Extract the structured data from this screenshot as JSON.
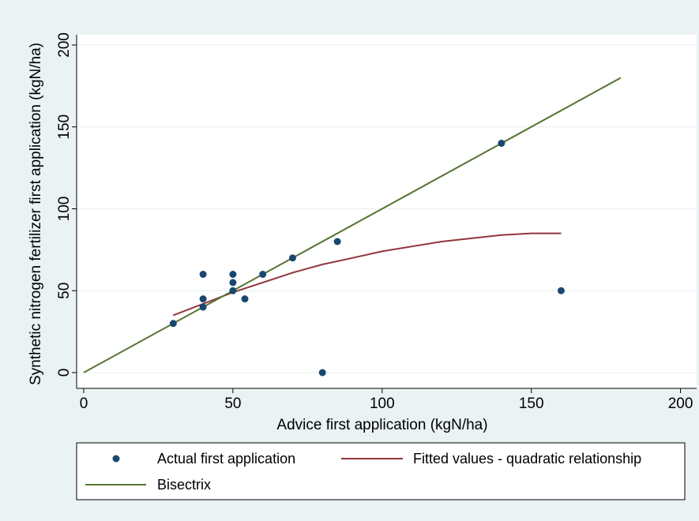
{
  "chart_data": {
    "type": "scatter",
    "title": "",
    "xlabel": "Advice first application (kgN/ha)",
    "ylabel": "Synthetic nitrogen fertilizer first application (kgN/ha)",
    "xlim": [
      0,
      200
    ],
    "ylim": [
      0,
      200
    ],
    "xticks": [
      0,
      50,
      100,
      150,
      200
    ],
    "yticks": [
      0,
      50,
      100,
      150,
      200
    ],
    "grid": "horizontal",
    "legend_position": "bottom",
    "series": [
      {
        "name": "Actual first application",
        "kind": "scatter",
        "color": "#1a476f",
        "points": [
          [
            30,
            30
          ],
          [
            40,
            40
          ],
          [
            40,
            45
          ],
          [
            40,
            60
          ],
          [
            50,
            50
          ],
          [
            50,
            55
          ],
          [
            50,
            60
          ],
          [
            54,
            45
          ],
          [
            60,
            60
          ],
          [
            70,
            70
          ],
          [
            80,
            0
          ],
          [
            85,
            80
          ],
          [
            140,
            140
          ],
          [
            160,
            50
          ]
        ]
      },
      {
        "name": "Fitted values - quadratic relationship",
        "kind": "line",
        "color": "#90353b",
        "points": [
          [
            30,
            35
          ],
          [
            40,
            42
          ],
          [
            50,
            49
          ],
          [
            60,
            55
          ],
          [
            70,
            61
          ],
          [
            80,
            66
          ],
          [
            90,
            70
          ],
          [
            100,
            74
          ],
          [
            110,
            77
          ],
          [
            120,
            80
          ],
          [
            130,
            82
          ],
          [
            140,
            84
          ],
          [
            150,
            85
          ],
          [
            160,
            85
          ]
        ]
      },
      {
        "name": "Bisectrix",
        "kind": "line",
        "color": "#55752f",
        "points": [
          [
            0,
            0
          ],
          [
            180,
            180
          ]
        ]
      }
    ]
  }
}
